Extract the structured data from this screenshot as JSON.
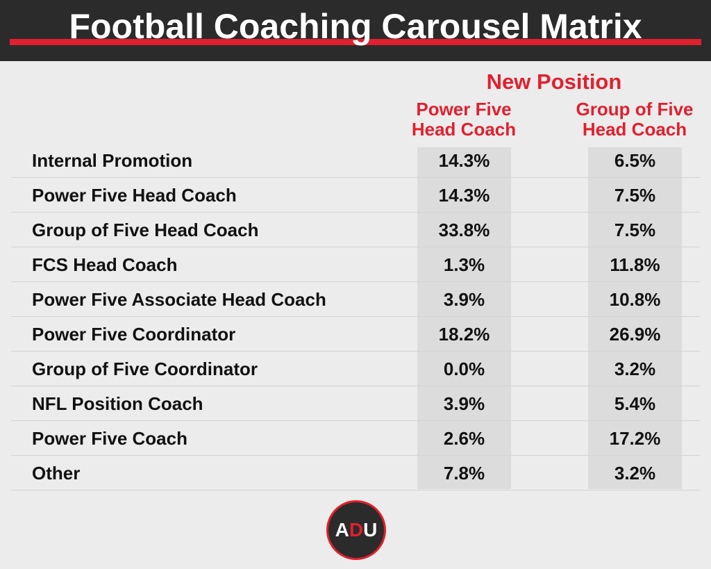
{
  "header": {
    "title": "Football Coaching Carousel Matrix"
  },
  "table": {
    "group_header": "New Position",
    "columns": [
      [
        "Power Five",
        "Head Coach"
      ],
      [
        "Group of Five",
        "Head Coach"
      ]
    ],
    "rows": [
      [
        "Internal Promotion",
        "14.3%",
        "6.5%"
      ],
      [
        "Power Five Head Coach",
        "14.3%",
        "7.5%"
      ],
      [
        "Group of Five Head Coach",
        "33.8%",
        "7.5%"
      ],
      [
        "FCS Head Coach",
        "1.3%",
        "11.8%"
      ],
      [
        "Power Five Associate Head Coach",
        "3.9%",
        "10.8%"
      ],
      [
        "Power Five Coordinator",
        "18.2%",
        "26.9%"
      ],
      [
        "Group of Five Coordinator",
        "0.0%",
        "3.2%"
      ],
      [
        "NFL Position Coach",
        "3.9%",
        "5.4%"
      ],
      [
        "Power Five Coach",
        "2.6%",
        "17.2%"
      ],
      [
        "Other",
        "7.8%",
        "3.2%"
      ]
    ]
  },
  "logo": [
    "A",
    "D",
    "U"
  ]
}
